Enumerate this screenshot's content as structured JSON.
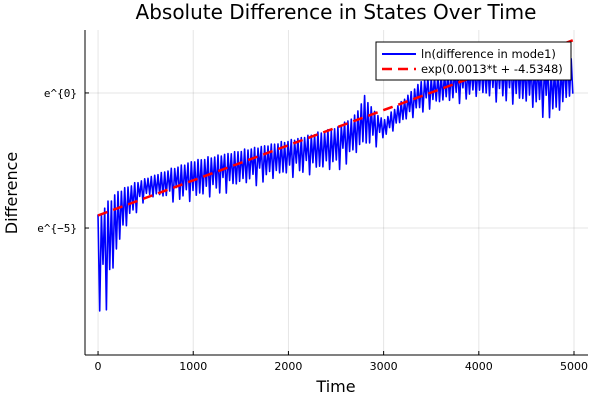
{
  "chart_data": {
    "type": "line",
    "title": "Absolute Difference in States Over Time",
    "xlabel": "Time",
    "ylabel": "Difference",
    "xlim": [
      -137,
      5147
    ],
    "ylim_ln": [
      -9.7,
      2.33
    ],
    "x_ticks": [
      0,
      1000,
      2000,
      3000,
      4000,
      5000
    ],
    "x_tick_labels": [
      "0",
      "1000",
      "2000",
      "3000",
      "4000",
      "5000"
    ],
    "y_ticks_ln": [
      -5,
      0
    ],
    "y_tick_labels": [
      "e^{−5}",
      "e^{0}"
    ],
    "grid": true,
    "legend_position": "top-right",
    "series": [
      {
        "name": "ln(difference in mode1)",
        "color": "#0000ff",
        "style": "solid",
        "oscillation_period": 35,
        "upper_envelope": {
          "t": [
            0,
            100,
            200,
            500,
            1000,
            1500,
            2000,
            2500,
            2700,
            2800,
            2900,
            3000,
            3200,
            3400,
            3700,
            4000,
            4200,
            4500,
            4800,
            5000
          ],
          "v": [
            -4.5,
            -3.96,
            -3.6,
            -3.15,
            -2.48,
            -2.1,
            -1.74,
            -1.26,
            -0.8,
            -0.07,
            -0.63,
            -1.0,
            -0.26,
            0.48,
            0.85,
            1.04,
            1.2,
            1.2,
            1.04,
            1.4
          ]
        },
        "lower_envelope": {
          "t": [
            0,
            50,
            100,
            150,
            200,
            300,
            500,
            1000,
            1500,
            2000,
            2500,
            2700,
            2900,
            3000,
            3200,
            3500,
            4000,
            4500,
            4800,
            5000
          ],
          "v": [
            -9.33,
            -7.67,
            -8.4,
            -7.3,
            -6.2,
            -5.07,
            -3.96,
            -4.15,
            -3.6,
            -3.2,
            -3.0,
            -2.5,
            -2.1,
            -1.74,
            -1.2,
            -0.63,
            -0.26,
            -0.63,
            -1.19,
            -0.26
          ]
        }
      },
      {
        "name": "exp(0.0013*t + -4.5348)",
        "color": "#ff0000",
        "style": "dashed",
        "slope": 0.0013,
        "intercept": -4.5348,
        "t_range": [
          0,
          5000
        ]
      }
    ]
  }
}
